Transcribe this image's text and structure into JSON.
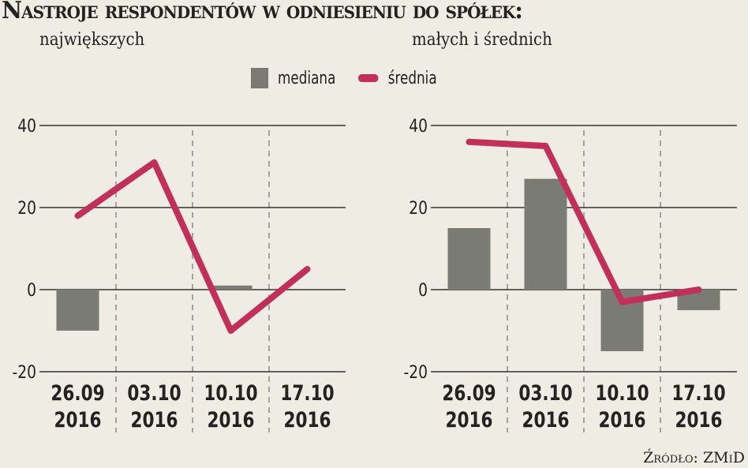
{
  "title": "Nastroje respondentów w odniesieniu do spółek:",
  "legend": {
    "bar_label": "mediana",
    "line_label": "średnia",
    "bar_color": "#7a7b72",
    "line_color": "#c2305a"
  },
  "source": "Źródło: ZMiD",
  "chart_data": [
    {
      "type": "bar+line",
      "title": "największych",
      "categories": [
        [
          "26.09",
          "2016"
        ],
        [
          "03.10",
          "2016"
        ],
        [
          "10.10",
          "2016"
        ],
        [
          "17.10",
          "2016"
        ]
      ],
      "ylim": [
        -20,
        40
      ],
      "yticks": [
        -20,
        0,
        20,
        40
      ],
      "grid": true,
      "legend_position": "top",
      "series": [
        {
          "name": "mediana",
          "type": "bar",
          "values": [
            -10,
            0,
            1,
            0
          ]
        },
        {
          "name": "średnia",
          "type": "line",
          "values": [
            18,
            31,
            -10,
            5
          ]
        }
      ]
    },
    {
      "type": "bar+line",
      "title": "małych i średnich",
      "categories": [
        [
          "26.09",
          "2016"
        ],
        [
          "03.10",
          "2016"
        ],
        [
          "10.10",
          "2016"
        ],
        [
          "17.10",
          "2016"
        ]
      ],
      "ylim": [
        -20,
        40
      ],
      "yticks": [
        -20,
        0,
        20,
        40
      ],
      "grid": true,
      "legend_position": "top",
      "series": [
        {
          "name": "mediana",
          "type": "bar",
          "values": [
            15,
            27,
            -15,
            -5
          ]
        },
        {
          "name": "średnia",
          "type": "line",
          "values": [
            36,
            35,
            -3,
            0
          ]
        }
      ]
    }
  ]
}
